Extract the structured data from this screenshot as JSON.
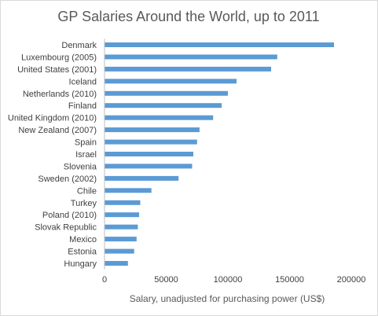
{
  "chart_data": {
    "type": "bar",
    "orientation": "horizontal",
    "title": "GP Salaries Around the World, up to 2011",
    "xlabel": "Salary, unadjusted for purchasing power (US$)",
    "ylabel": "",
    "xlim": [
      0,
      200000
    ],
    "xticks": [
      0,
      50000,
      100000,
      150000,
      200000
    ],
    "grid": false,
    "legend": "none",
    "bar_color": "#5b9bd5",
    "categories": [
      "Denmark",
      "Luxembourg (2005)",
      "United States (2001)",
      "Iceland",
      "Netherlands (2010)",
      "Finland",
      "United Kingdom (2010)",
      "New Zealand (2007)",
      "Spain",
      "Israel",
      "Slovenia",
      "Sweden (2002)",
      "Chile",
      "Turkey",
      "Poland (2010)",
      "Slovak Republic",
      "Mexico",
      "Estonia",
      "Hungary"
    ],
    "values": [
      186000,
      140000,
      135000,
      107000,
      100000,
      95000,
      88000,
      77000,
      75000,
      72000,
      71000,
      60000,
      38000,
      29000,
      28000,
      27000,
      26000,
      24000,
      19000
    ]
  }
}
